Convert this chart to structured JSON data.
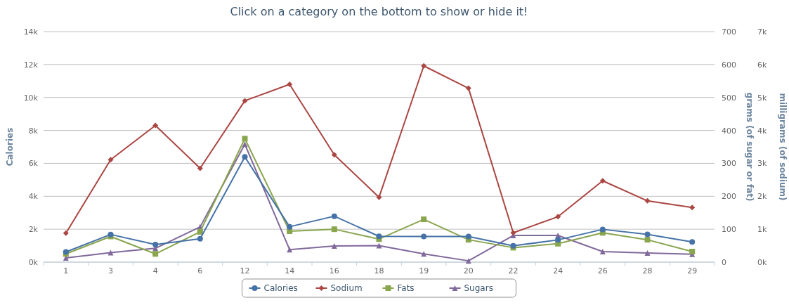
{
  "chart_data": {
    "type": "line",
    "title": "Click on a category on the bottom to show or hide it!",
    "ylabel": "Calories",
    "y2label": "grams (of sugar or fat)",
    "y3label": "milligrams (of sodium)",
    "categories": [
      "1",
      "3",
      "4",
      "6",
      "12",
      "14",
      "16",
      "18",
      "19",
      "20",
      "22",
      "24",
      "26",
      "28",
      "29"
    ],
    "series": [
      {
        "name": "Calories",
        "color": "#4572a7",
        "marker": "circle",
        "values": [
          620,
          1680,
          1070,
          1420,
          6390,
          2150,
          2790,
          1570,
          1560,
          1560,
          990,
          1350,
          1990,
          1690,
          1230
        ]
      },
      {
        "name": "Sodium",
        "color": "#aa4643",
        "marker": "diamond",
        "axis": "y3",
        "values": [
          880,
          3110,
          4150,
          2850,
          4900,
          5400,
          3260,
          1970,
          5960,
          5280,
          890,
          1380,
          2470,
          1860,
          1660
        ]
      },
      {
        "name": "Fats",
        "color": "#89a54e",
        "marker": "square",
        "axis": "y2",
        "values": [
          25,
          78,
          25,
          92,
          375,
          94,
          100,
          70,
          130,
          68,
          44,
          56,
          89,
          68,
          32
        ]
      },
      {
        "name": "Sugars",
        "color": "#80699b",
        "marker": "triangle",
        "axis": "y2",
        "values": [
          13,
          29,
          42,
          107,
          358,
          38,
          49,
          50,
          25,
          4,
          81,
          81,
          32,
          28,
          24
        ]
      }
    ],
    "ylim": [
      0,
      14000
    ],
    "yticks": [
      {
        "value": 0,
        "label": "0k"
      },
      {
        "value": 2000,
        "label": "2k"
      },
      {
        "value": 4000,
        "label": "4k"
      },
      {
        "value": 6000,
        "label": "6k"
      },
      {
        "value": 8000,
        "label": "8k"
      },
      {
        "value": 10000,
        "label": "10k"
      },
      {
        "value": 12000,
        "label": "12k"
      },
      {
        "value": 14000,
        "label": "14k"
      }
    ],
    "y2lim": [
      0,
      700
    ],
    "y2ticks": [
      0,
      100,
      200,
      300,
      400,
      500,
      600,
      700
    ],
    "y3lim": [
      0,
      7000
    ],
    "y3ticks": [
      {
        "value": 0,
        "label": "0k"
      },
      {
        "value": 1000,
        "label": "1k"
      },
      {
        "value": 2000,
        "label": "2k"
      },
      {
        "value": 3000,
        "label": "3k"
      },
      {
        "value": 4000,
        "label": "4k"
      },
      {
        "value": 5000,
        "label": "5k"
      },
      {
        "value": 6000,
        "label": "6k"
      },
      {
        "value": 7000,
        "label": "7k"
      }
    ],
    "grid": "y",
    "legend": "bottom",
    "line_style": "solid"
  }
}
